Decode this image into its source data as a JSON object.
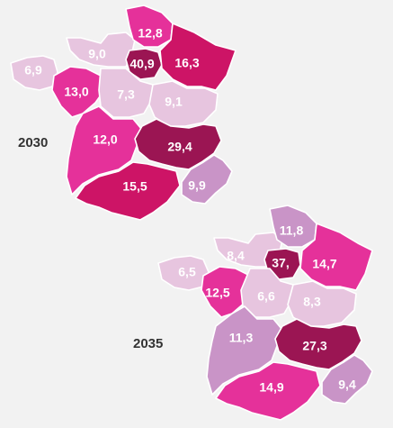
{
  "colors": {
    "background": "#f2f2f2",
    "border": "#ffffff",
    "level_1": "#e7c5df",
    "level_2": "#c994c7",
    "level_3": "#e5319a",
    "level_4": "#cd1466",
    "level_5": "#9b1553"
  },
  "maps": [
    {
      "year": "2030",
      "regions": [
        {
          "id": "hauts-de-france",
          "value": "12,8",
          "level": "level_3"
        },
        {
          "id": "normandie",
          "value": "9,0",
          "level": "level_1"
        },
        {
          "id": "ile-de-france",
          "value": "40,9",
          "level": "level_5"
        },
        {
          "id": "grand-est",
          "value": "16,3",
          "level": "level_4"
        },
        {
          "id": "bretagne",
          "value": "6,9",
          "level": "level_1"
        },
        {
          "id": "pays-de-la-loire",
          "value": "13,0",
          "level": "level_3"
        },
        {
          "id": "centre-val-de-loire",
          "value": "7,3",
          "level": "level_1"
        },
        {
          "id": "bourgogne-franche-comte",
          "value": "9,1",
          "level": "level_1"
        },
        {
          "id": "nouvelle-aquitaine",
          "value": "12,0",
          "level": "level_3"
        },
        {
          "id": "auvergne-rhone-alpes",
          "value": "29,4",
          "level": "level_5"
        },
        {
          "id": "occitanie",
          "value": "15,5",
          "level": "level_4"
        },
        {
          "id": "provence-alpes-cote-d-azur",
          "value": "9,9",
          "level": "level_2"
        }
      ]
    },
    {
      "year": "2035",
      "regions": [
        {
          "id": "hauts-de-france",
          "value": "11,8",
          "level": "level_2"
        },
        {
          "id": "normandie",
          "value": "8,4",
          "level": "level_1"
        },
        {
          "id": "ile-de-france",
          "value": "37,",
          "level": "level_5"
        },
        {
          "id": "grand-est",
          "value": "14,7",
          "level": "level_3"
        },
        {
          "id": "bretagne",
          "value": "6,5",
          "level": "level_1"
        },
        {
          "id": "pays-de-la-loire",
          "value": "12,5",
          "level": "level_3"
        },
        {
          "id": "centre-val-de-loire",
          "value": "6,6",
          "level": "level_1"
        },
        {
          "id": "bourgogne-franche-comte",
          "value": "8,3",
          "level": "level_1"
        },
        {
          "id": "nouvelle-aquitaine",
          "value": "11,3",
          "level": "level_2"
        },
        {
          "id": "auvergne-rhone-alpes",
          "value": "27,3",
          "level": "level_5"
        },
        {
          "id": "occitanie",
          "value": "14,9",
          "level": "level_3"
        },
        {
          "id": "provence-alpes-cote-d-azur",
          "value": "9,4",
          "level": "level_2"
        }
      ]
    }
  ]
}
